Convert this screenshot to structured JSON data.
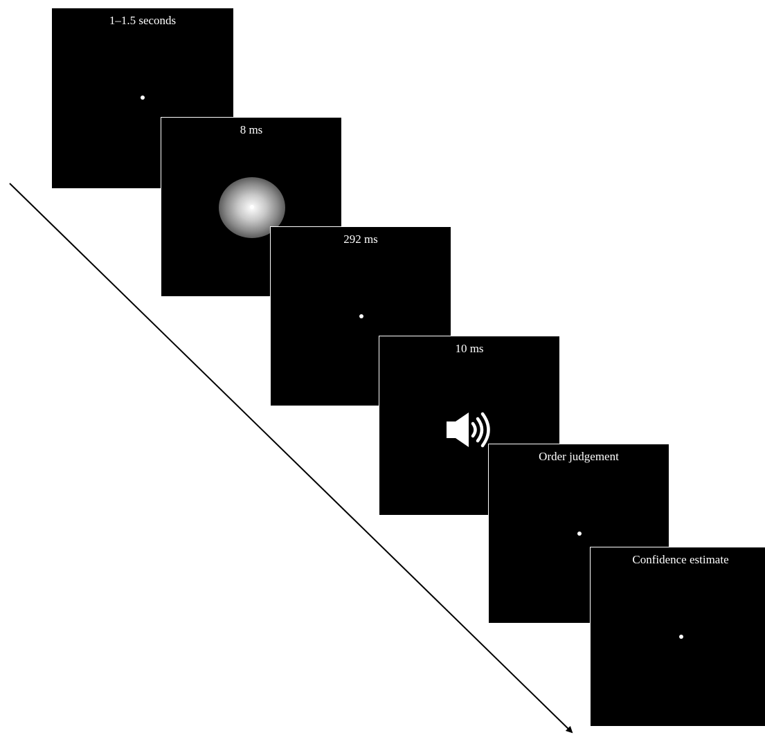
{
  "screens": [
    {
      "label": "1–1.5 seconds",
      "content": "fixation-dot"
    },
    {
      "label": "8 ms",
      "content": "flash-gradient"
    },
    {
      "label": "292 ms",
      "content": "fixation-dot"
    },
    {
      "label": "10 ms",
      "content": "speaker-icon"
    },
    {
      "label": "Order judgement",
      "content": "fixation-dot"
    },
    {
      "label": "Confidence estimate",
      "content": "fixation-dot"
    }
  ],
  "colors": {
    "screen_background": "#000000",
    "stimulus": "#ffffff",
    "arrow": "#000000",
    "page_background": "#ffffff"
  }
}
